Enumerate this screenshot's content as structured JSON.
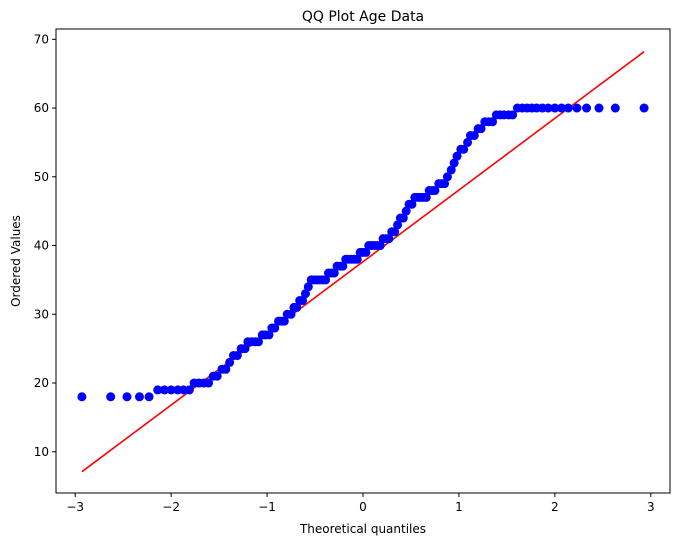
{
  "chart_data": {
    "type": "scatter",
    "title": "QQ Plot Age Data",
    "xlabel": "Theoretical quantiles",
    "ylabel": "Ordered Values",
    "xlim": [
      -3.2,
      3.2
    ],
    "ylim": [
      4,
      71.5
    ],
    "xticks": [
      -3,
      -2,
      -1,
      0,
      1,
      2,
      3
    ],
    "xtick_labels": [
      "−3",
      "−2",
      "−1",
      "0",
      "1",
      "2",
      "3"
    ],
    "yticks": [
      10,
      20,
      30,
      40,
      50,
      60,
      70
    ],
    "ytick_labels": [
      "10",
      "20",
      "30",
      "40",
      "50",
      "60",
      "70"
    ],
    "grid": false,
    "legend": "none",
    "points_color": "#0000ff",
    "line_color": "#ff0000",
    "points": {
      "x": [
        -2.93,
        -2.63,
        -2.46,
        -2.33,
        -2.23,
        -2.14,
        -2.07,
        -2.0,
        -1.93,
        -1.87,
        -1.81,
        -1.76,
        -1.71,
        -1.66,
        -1.61,
        -1.56,
        -1.52,
        -1.47,
        -1.43,
        -1.39,
        -1.35,
        -1.31,
        -1.27,
        -1.23,
        -1.2,
        -1.16,
        -1.12,
        -1.09,
        -1.05,
        -1.02,
        -0.98,
        -0.95,
        -0.92,
        -0.88,
        -0.85,
        -0.82,
        -0.79,
        -0.75,
        -0.72,
        -0.69,
        -0.66,
        -0.63,
        -0.6,
        -0.57,
        -0.54,
        -0.51,
        -0.48,
        -0.45,
        -0.42,
        -0.39,
        -0.36,
        -0.33,
        -0.3,
        -0.27,
        -0.24,
        -0.21,
        -0.18,
        -0.15,
        -0.12,
        -0.09,
        -0.06,
        -0.03,
        0.0,
        0.03,
        0.06,
        0.09,
        0.12,
        0.15,
        0.18,
        0.21,
        0.24,
        0.27,
        0.3,
        0.33,
        0.36,
        0.39,
        0.42,
        0.45,
        0.48,
        0.51,
        0.54,
        0.57,
        0.6,
        0.63,
        0.66,
        0.69,
        0.72,
        0.75,
        0.79,
        0.82,
        0.85,
        0.88,
        0.92,
        0.95,
        0.98,
        1.02,
        1.05,
        1.09,
        1.12,
        1.16,
        1.2,
        1.23,
        1.27,
        1.31,
        1.35,
        1.39,
        1.43,
        1.47,
        1.52,
        1.56,
        1.61,
        1.66,
        1.71,
        1.76,
        1.81,
        1.87,
        1.93,
        2.0,
        2.07,
        2.14,
        2.23,
        2.33,
        2.46,
        2.63,
        2.93
      ],
      "y": [
        18,
        18,
        18,
        18,
        18,
        19,
        19,
        19,
        19,
        19,
        19,
        20,
        20,
        20,
        20,
        21,
        21,
        22,
        22,
        23,
        24,
        24,
        25,
        25,
        26,
        26,
        26,
        26,
        27,
        27,
        27,
        28,
        28,
        29,
        29,
        29,
        30,
        30,
        31,
        31,
        32,
        32,
        33,
        34,
        35,
        35,
        35,
        35,
        35,
        35,
        36,
        36,
        36,
        37,
        37,
        37,
        38,
        38,
        38,
        38,
        38,
        39,
        39,
        39,
        40,
        40,
        40,
        40,
        40,
        41,
        41,
        41,
        42,
        42,
        43,
        44,
        44,
        45,
        46,
        46,
        47,
        47,
        47,
        47,
        47,
        48,
        48,
        48,
        49,
        49,
        49,
        50,
        51,
        52,
        53,
        54,
        54,
        55,
        56,
        56,
        57,
        57,
        58,
        58,
        58,
        59,
        59,
        59,
        59,
        59,
        60,
        60,
        60,
        60,
        60,
        60,
        60,
        60,
        60,
        60,
        60,
        60,
        60,
        60,
        60
      ],
      "note_unused": null
    },
    "fit_line": {
      "x": [
        -2.93,
        2.93
      ],
      "y": [
        7.1,
        68.2
      ]
    }
  }
}
